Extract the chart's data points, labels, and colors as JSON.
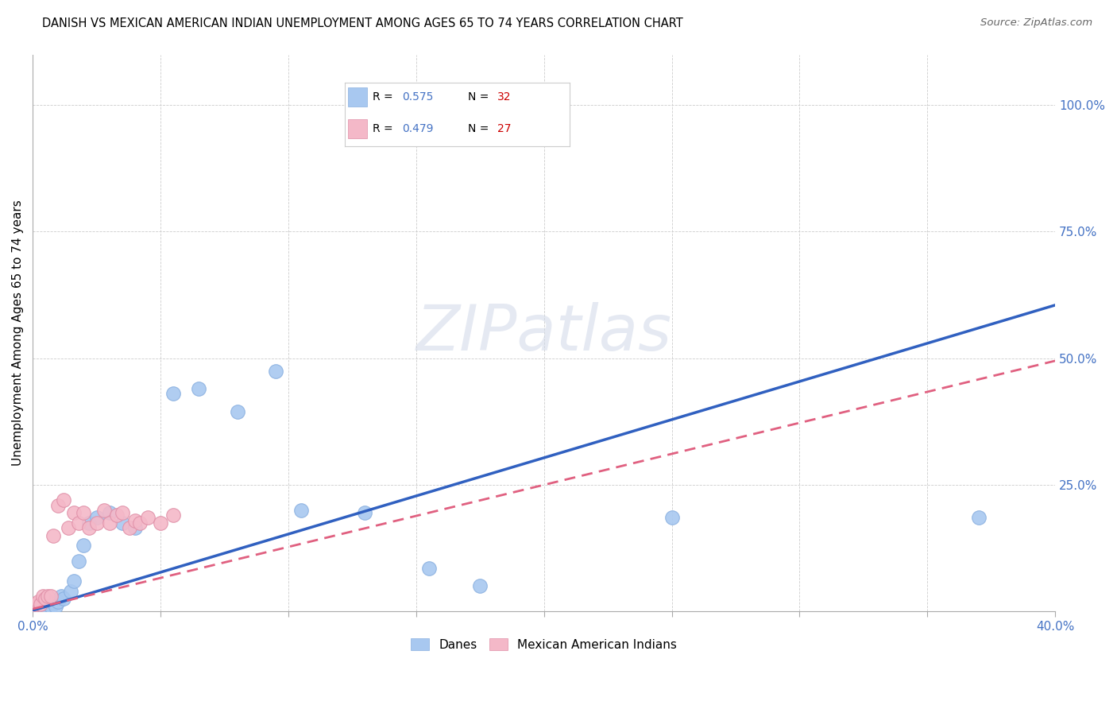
{
  "title": "DANISH VS MEXICAN AMERICAN INDIAN UNEMPLOYMENT AMONG AGES 65 TO 74 YEARS CORRELATION CHART",
  "source": "Source: ZipAtlas.com",
  "ylabel": "Unemployment Among Ages 65 to 74 years",
  "xlim": [
    0.0,
    0.4
  ],
  "ylim": [
    0.0,
    1.1
  ],
  "xticks": [
    0.0,
    0.05,
    0.1,
    0.15,
    0.2,
    0.25,
    0.3,
    0.35,
    0.4
  ],
  "yticks": [
    0.0,
    0.25,
    0.5,
    0.75,
    1.0
  ],
  "blue_R": 0.575,
  "blue_N": 32,
  "pink_R": 0.479,
  "pink_N": 27,
  "blue_color": "#a8c8f0",
  "pink_color": "#f4b8c8",
  "blue_line_color": "#3060c0",
  "pink_line_color": "#e06080",
  "legend_R_color": "#4472c4",
  "legend_N_color": "#cc0000",
  "background_color": "#ffffff",
  "blue_scatter_x": [
    0.0,
    0.001,
    0.002,
    0.003,
    0.004,
    0.005,
    0.006,
    0.007,
    0.008,
    0.009,
    0.01,
    0.011,
    0.012,
    0.015,
    0.016,
    0.018,
    0.02,
    0.022,
    0.025,
    0.03,
    0.035,
    0.04,
    0.055,
    0.065,
    0.08,
    0.095,
    0.105,
    0.13,
    0.155,
    0.175,
    0.25,
    0.37
  ],
  "blue_scatter_y": [
    0.005,
    0.01,
    0.005,
    0.008,
    0.01,
    0.012,
    0.005,
    0.01,
    0.018,
    0.01,
    0.02,
    0.03,
    0.025,
    0.04,
    0.06,
    0.1,
    0.13,
    0.175,
    0.185,
    0.195,
    0.175,
    0.165,
    0.43,
    0.44,
    0.395,
    0.475,
    0.2,
    0.195,
    0.085,
    0.05,
    0.185,
    0.185
  ],
  "pink_scatter_x": [
    0.0,
    0.001,
    0.002,
    0.003,
    0.004,
    0.005,
    0.006,
    0.007,
    0.008,
    0.01,
    0.012,
    0.014,
    0.016,
    0.018,
    0.02,
    0.022,
    0.025,
    0.028,
    0.03,
    0.033,
    0.035,
    0.038,
    0.04,
    0.042,
    0.045,
    0.05,
    0.055
  ],
  "pink_scatter_y": [
    0.01,
    0.015,
    0.02,
    0.015,
    0.03,
    0.025,
    0.03,
    0.03,
    0.15,
    0.21,
    0.22,
    0.165,
    0.195,
    0.175,
    0.195,
    0.165,
    0.175,
    0.2,
    0.175,
    0.19,
    0.195,
    0.165,
    0.18,
    0.175,
    0.185,
    0.175,
    0.19
  ],
  "blue_line_x0": 0.0,
  "blue_line_y0": 0.002,
  "blue_line_x1": 0.4,
  "blue_line_y1": 0.605,
  "pink_line_x0": 0.0,
  "pink_line_y0": 0.005,
  "pink_line_x1": 0.4,
  "pink_line_y1": 0.495
}
